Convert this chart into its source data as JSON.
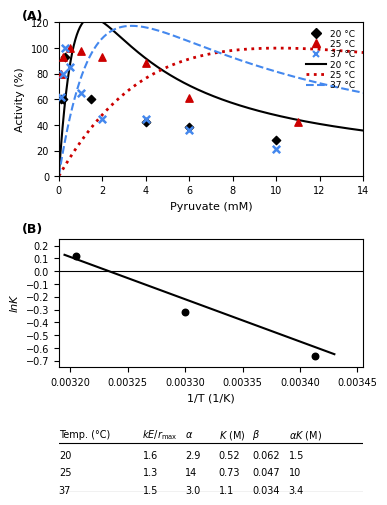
{
  "panel_A": {
    "xlabel": "Pyruvate (mM)",
    "ylabel": "Activity (%)",
    "xlim": [
      0,
      14
    ],
    "ylim": [
      0,
      120
    ],
    "xticks": [
      0,
      2,
      4,
      6,
      8,
      10,
      12,
      14
    ],
    "yticks": [
      0,
      20,
      40,
      60,
      80,
      100,
      120
    ],
    "data_20C": [
      [
        0.1,
        60
      ],
      [
        0.2,
        60
      ],
      [
        0.3,
        93
      ],
      [
        1.5,
        60
      ],
      [
        4.0,
        42
      ],
      [
        6.0,
        38
      ],
      [
        10.0,
        28
      ]
    ],
    "data_25C": [
      [
        0.1,
        80
      ],
      [
        0.2,
        93
      ],
      [
        0.5,
        100
      ],
      [
        1.0,
        98
      ],
      [
        2.0,
        93
      ],
      [
        4.0,
        88
      ],
      [
        6.0,
        61
      ],
      [
        11.0,
        42
      ]
    ],
    "data_37C": [
      [
        0.1,
        62
      ],
      [
        0.2,
        80
      ],
      [
        0.3,
        100
      ],
      [
        0.5,
        85
      ],
      [
        1.0,
        65
      ],
      [
        2.0,
        45
      ],
      [
        4.0,
        45
      ],
      [
        6.0,
        36
      ],
      [
        10.0,
        21
      ]
    ],
    "params_20C": {
      "kE_rmax": 1.6,
      "alpha": 2.9,
      "K": 0.52,
      "beta": 0.062,
      "alphaK": 1.5
    },
    "params_25C": {
      "kE_rmax": 1.3,
      "alpha": 14,
      "K": 0.73,
      "beta": 0.047,
      "alphaK": 10
    },
    "params_37C": {
      "kE_rmax": 1.5,
      "alpha": 3.0,
      "K": 1.1,
      "beta": 0.034,
      "alphaK": 3.4
    },
    "color_20C": "#000000",
    "color_25C": "#cc0000",
    "color_37C": "#4488ee"
  },
  "panel_B": {
    "xlabel": "1/T (1/K)",
    "ylabel": "lnK",
    "xlim": [
      0.00319,
      0.003455
    ],
    "ylim": [
      -0.75,
      0.25
    ],
    "xticks": [
      0.0032,
      0.00325,
      0.0033,
      0.00335,
      0.0034,
      0.00345
    ],
    "yticks": [
      -0.7,
      -0.6,
      -0.5,
      -0.4,
      -0.3,
      -0.2,
      -0.1,
      0.0,
      0.1,
      0.2
    ],
    "data_points": [
      [
        0.003205,
        0.115
      ],
      [
        0.0033,
        -0.315
      ],
      [
        0.003413,
        -0.666
      ]
    ],
    "line_x": [
      0.003195,
      0.00343
    ],
    "line_y": [
      0.128,
      -0.648
    ],
    "color": "#000000"
  },
  "table": {
    "col_headers": [
      "Temp. (°C)",
      "kE/r_max",
      "α",
      "K (M)",
      "β",
      "αK (M)"
    ],
    "rows": [
      [
        "20",
        "1.6",
        "2.9",
        "0.52",
        "0.062",
        "1.5"
      ],
      [
        "25",
        "1.3",
        "14",
        "0.73",
        "0.047",
        "10"
      ],
      [
        "37",
        "1.5",
        "3.0",
        "1.1",
        "0.034",
        "3.4"
      ]
    ]
  }
}
